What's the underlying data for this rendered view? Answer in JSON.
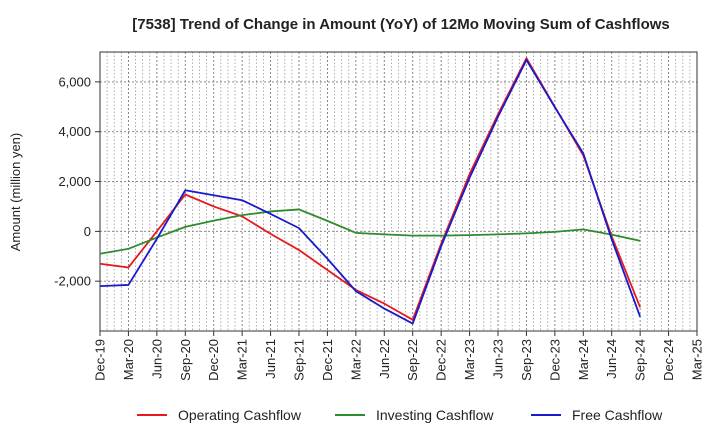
{
  "chart_data": {
    "type": "line",
    "title": "[7538]  Trend of Change in Amount (YoY) of 12Mo Moving Sum of Cashflows",
    "xlabel": "",
    "ylabel": "Amount (million yen)",
    "ylim": [
      -4000,
      7200
    ],
    "yticks": [
      -2000,
      0,
      2000,
      4000,
      6000
    ],
    "ytick_labels": [
      "-2,000",
      "0",
      "2,000",
      "4,000",
      "6,000"
    ],
    "categories": [
      "Dec-19",
      "Mar-20",
      "Jun-20",
      "Sep-20",
      "Dec-20",
      "Mar-21",
      "Jun-21",
      "Sep-21",
      "Dec-21",
      "Mar-22",
      "Jun-22",
      "Sep-22",
      "Dec-22",
      "Mar-23",
      "Jun-23",
      "Sep-23",
      "Dec-23",
      "Mar-24",
      "Jun-24",
      "Sep-24",
      "Dec-24",
      "Mar-25"
    ],
    "grid": true,
    "legend_position": "bottom",
    "series": [
      {
        "name": "Operating Cashflow",
        "color": "#e41a1c",
        "values": [
          -1300,
          -1450,
          0,
          1480,
          1000,
          600,
          -100,
          -750,
          -1550,
          -2350,
          -2900,
          -3550,
          -500,
          2300,
          4700,
          6950,
          5000,
          3050,
          -200,
          -3050,
          null,
          null
        ]
      },
      {
        "name": "Investing Cashflow",
        "color": "#2e8b2e",
        "values": [
          -900,
          -700,
          -250,
          180,
          430,
          650,
          800,
          880,
          420,
          -60,
          -120,
          -170,
          -170,
          -150,
          -120,
          -80,
          -20,
          80,
          -130,
          -380,
          null,
          null
        ]
      },
      {
        "name": "Free Cashflow",
        "color": "#1a1acd",
        "values": [
          -2200,
          -2150,
          -300,
          1650,
          1450,
          1250,
          700,
          130,
          -1100,
          -2400,
          -3100,
          -3700,
          -600,
          2150,
          4600,
          6880,
          4980,
          3130,
          -320,
          -3430,
          null,
          null
        ]
      }
    ]
  }
}
